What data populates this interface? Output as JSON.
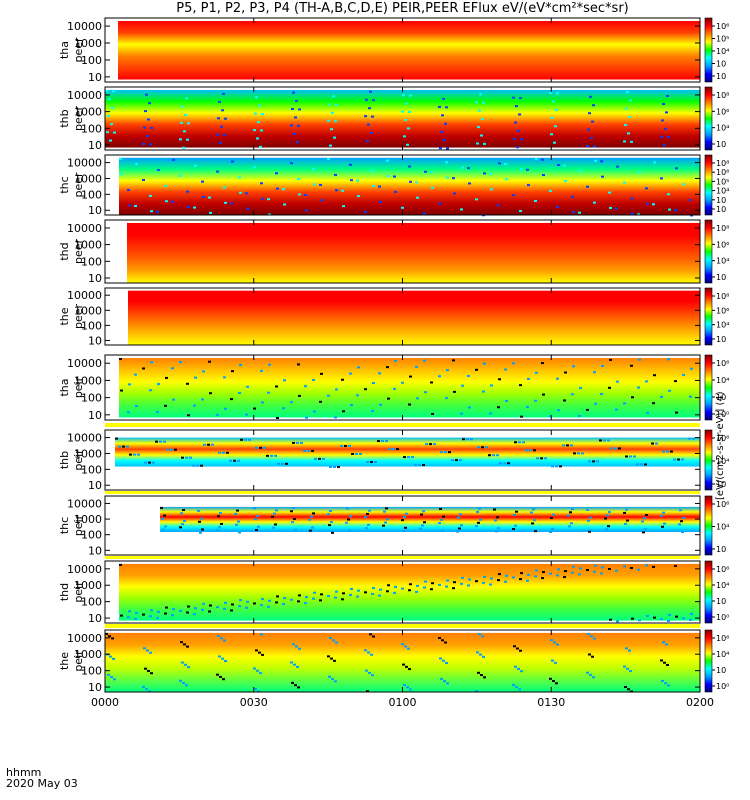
{
  "title": "P5, P1, P2, P3, P4 (TH-A,B,C,D,E) PEIR,PEER EFlux eV/(eV*cm²*sec*sr)",
  "colorbar_label": "[eV/(cm2-s-sr-eV)] (4)",
  "x_axis": {
    "ticks": [
      "0000",
      "0030",
      "0100",
      "0130",
      "0200"
    ],
    "corner_label_1": "hhmm",
    "corner_label_2": "2020 May 03"
  },
  "chart_data": {
    "type": "heatmap",
    "title": "P5, P1, P2, P3, P4 (TH-A,B,C,D,E) PEIR,PEER EFlux eV/(eV*cm²*sec*sr)",
    "xlabel": "hhmm",
    "x_range": [
      "0000",
      "0200"
    ],
    "date": "2020 May 03",
    "y_scale": "log",
    "ylim": [
      5,
      30000
    ],
    "y_ticks": [
      10,
      100,
      1000,
      10000
    ],
    "y_tick_labels": [
      "10",
      "100",
      "1000",
      "10000"
    ],
    "colorbar": {
      "scale": "log",
      "colors": [
        "#000080",
        "#0000ff",
        "#00a0ff",
        "#00ffff",
        "#00ff00",
        "#ffff00",
        "#ff8000",
        "#ff0000",
        "#800000"
      ]
    },
    "panels": [
      {
        "probe": "tha",
        "species": "peer",
        "ylabel": [
          "tha",
          "peer"
        ],
        "cbar_ticks": [
          "10⁶",
          "10⁵",
          "10⁴",
          "10⁳",
          "10⁲"
        ]
      },
      {
        "probe": "thb",
        "species": "peer",
        "ylabel": [
          "thb",
          "peer"
        ],
        "cbar_ticks": [
          "10⁸",
          "10⁶",
          "10⁴",
          "10⁲"
        ]
      },
      {
        "probe": "thc",
        "species": "peer",
        "ylabel": [
          "thc",
          "peer"
        ],
        "cbar_ticks": [
          "10⁸",
          "10⁶",
          "10⁵",
          "10⁴",
          "10⁳",
          "10⁲"
        ]
      },
      {
        "probe": "thd",
        "species": "peer",
        "ylabel": [
          "thd",
          "peer"
        ],
        "cbar_ticks": [
          "10⁸",
          "10⁶",
          "10⁴",
          "10⁲"
        ]
      },
      {
        "probe": "the",
        "species": "peer",
        "ylabel": [
          "the",
          "peer"
        ],
        "cbar_ticks": [
          "10⁸",
          "10⁶",
          "10⁴",
          "10⁲"
        ]
      },
      {
        "probe": "tha",
        "species": "peir",
        "ylabel": [
          "tha",
          "peir"
        ],
        "cbar_ticks": [
          "10⁶",
          "10⁴",
          "10⁲",
          "10⁰"
        ]
      },
      {
        "probe": "thb",
        "species": "peir",
        "ylabel": [
          "thb",
          "peir"
        ],
        "cbar_ticks": [
          "10⁶",
          "10⁴",
          "10⁲"
        ]
      },
      {
        "probe": "thc",
        "species": "peir",
        "ylabel": [
          "thc",
          "peir"
        ],
        "cbar_ticks": [
          "10⁶",
          "10⁴",
          "10⁲"
        ]
      },
      {
        "probe": "thd",
        "species": "peir",
        "ylabel": [
          "thd",
          "peir"
        ],
        "cbar_ticks": [
          "10⁶",
          "10⁴",
          "10⁲",
          "10⁰"
        ]
      },
      {
        "probe": "the",
        "species": "peir",
        "ylabel": [
          "the",
          "peir"
        ],
        "cbar_ticks": [
          "10⁶",
          "10⁴",
          "10⁲",
          "10⁰"
        ]
      }
    ]
  }
}
